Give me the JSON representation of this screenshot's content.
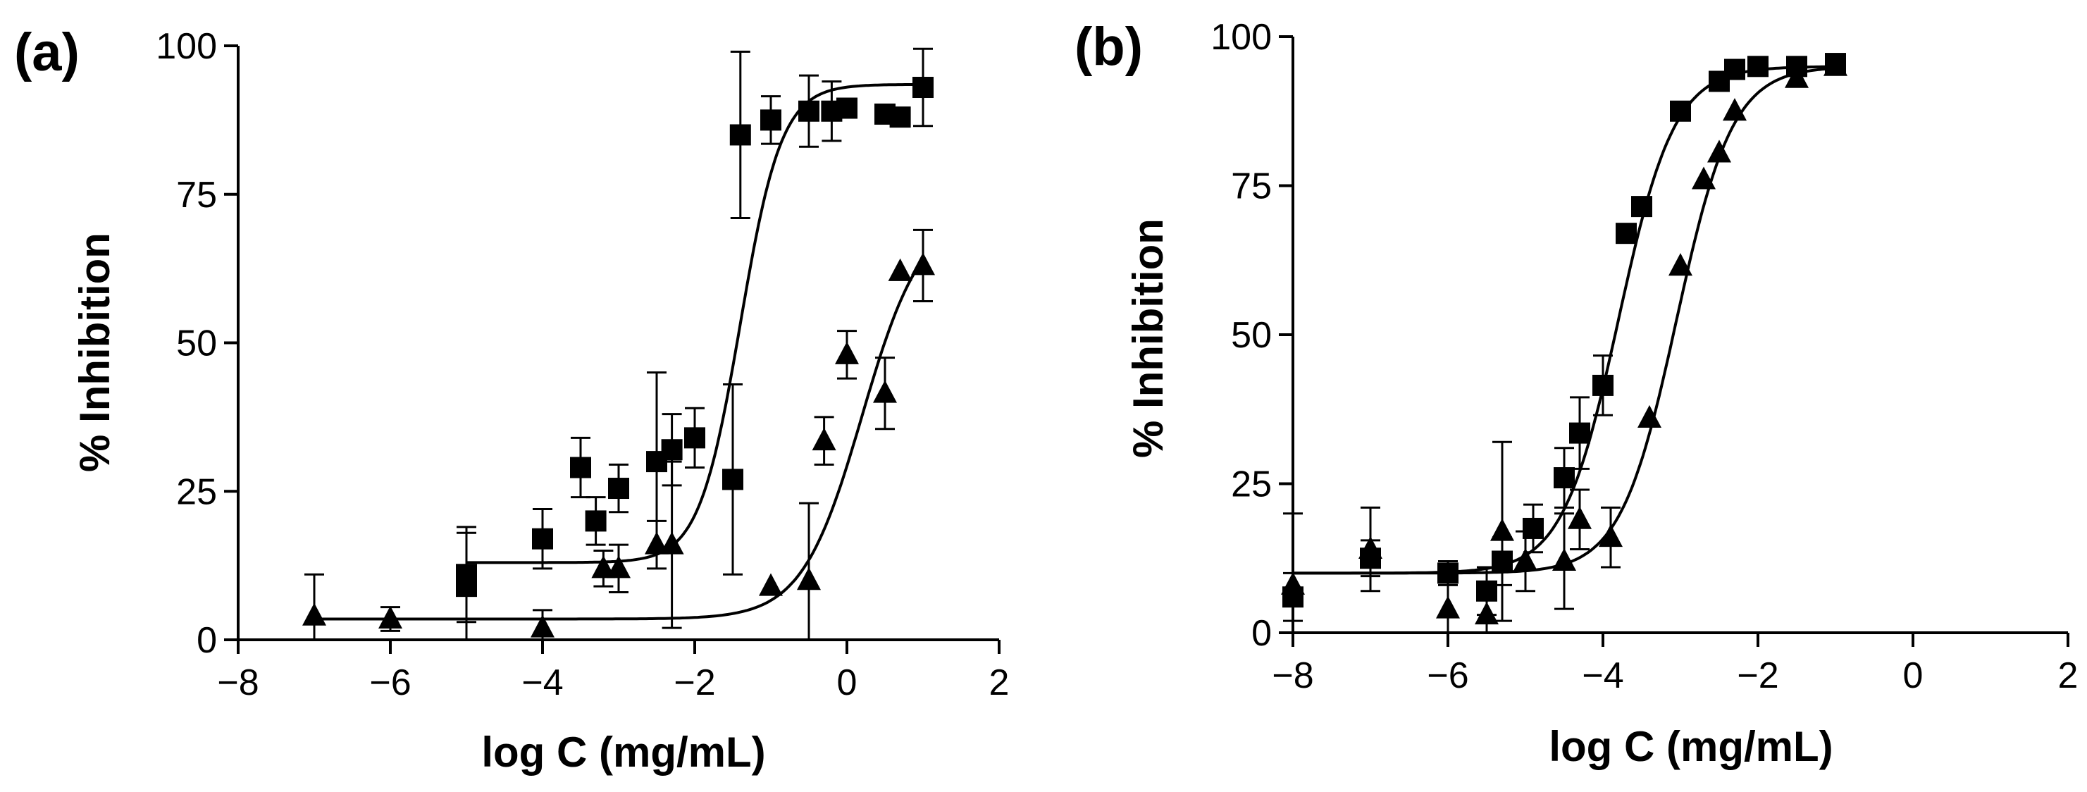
{
  "chart_data": [
    {
      "panel_label": "(a)",
      "type": "scatter",
      "xlabel": "log C (mg/mL)",
      "ylabel": "% Inhibition",
      "xlim": [
        -8,
        2
      ],
      "ylim": [
        0,
        100
      ],
      "xticks": [
        -8,
        -6,
        -4,
        -2,
        0,
        2
      ],
      "yticks": [
        0,
        25,
        50,
        75,
        100
      ],
      "xtick_labels": [
        "−8",
        "−6",
        "−4",
        "−2",
        "0",
        "2"
      ],
      "ytick_labels": [
        "0",
        "25",
        "50",
        "75",
        "100"
      ],
      "grid": false,
      "series": [
        {
          "marker": "square",
          "points": [
            {
              "x": -5.0,
              "y": 11,
              "err": 8
            },
            {
              "x": -5.0,
              "y": 9,
              "err": 9
            },
            {
              "x": -4.0,
              "y": 17,
              "err": 5
            },
            {
              "x": -3.5,
              "y": 29,
              "err": 5
            },
            {
              "x": -3.3,
              "y": 20,
              "err": 4
            },
            {
              "x": -3.0,
              "y": 25.5,
              "err": 4
            },
            {
              "x": -2.5,
              "y": 30,
              "err": 15
            },
            {
              "x": -2.3,
              "y": 32,
              "err": 6
            },
            {
              "x": -2.0,
              "y": 34,
              "err": 5
            },
            {
              "x": -1.5,
              "y": 27,
              "err": 16
            },
            {
              "x": -1.4,
              "y": 85,
              "err": 14
            },
            {
              "x": -1.0,
              "y": 87.5,
              "err": 4
            },
            {
              "x": -0.5,
              "y": 89,
              "err": 6
            },
            {
              "x": -0.2,
              "y": 89,
              "err": 5
            },
            {
              "x": 0.0,
              "y": 89.5,
              "err": 0
            },
            {
              "x": 0.5,
              "y": 88.5,
              "err": 0
            },
            {
              "x": 0.7,
              "y": 88,
              "err": 0
            },
            {
              "x": 1.0,
              "y": 93,
              "err": 6.5
            }
          ],
          "fit": {
            "bottom": 13,
            "top": 93.5,
            "log_ec50": -1.4,
            "hill": 1.6
          }
        },
        {
          "marker": "triangle",
          "points": [
            {
              "x": -7.0,
              "y": 4,
              "err": 7
            },
            {
              "x": -6.0,
              "y": 3.5,
              "err": 2
            },
            {
              "x": -4.0,
              "y": 2,
              "err": 3
            },
            {
              "x": -3.2,
              "y": 12,
              "err": 3
            },
            {
              "x": -3.0,
              "y": 12,
              "err": 4
            },
            {
              "x": -2.5,
              "y": 16,
              "err": 4
            },
            {
              "x": -2.3,
              "y": 16,
              "err": 14
            },
            {
              "x": -1.0,
              "y": 9,
              "err": 0
            },
            {
              "x": -0.5,
              "y": 10,
              "err": 13
            },
            {
              "x": -0.3,
              "y": 33.5,
              "err": 4
            },
            {
              "x": 0.0,
              "y": 48,
              "err": 4
            },
            {
              "x": 0.5,
              "y": 41.5,
              "err": 6
            },
            {
              "x": 0.7,
              "y": 62,
              "err": 0
            },
            {
              "x": 1.0,
              "y": 63,
              "err": 6
            }
          ],
          "fit": {
            "bottom": 3.5,
            "top": 72,
            "log_ec50": 0.2,
            "hill": 1.1
          }
        }
      ]
    },
    {
      "panel_label": "(b)",
      "type": "scatter",
      "xlabel": "log C (mg/mL)",
      "ylabel": "% Inhibition",
      "xlim": [
        -8,
        2
      ],
      "ylim": [
        0,
        100
      ],
      "xticks": [
        -8,
        -6,
        -4,
        -2,
        0,
        2
      ],
      "yticks": [
        0,
        25,
        50,
        75,
        100
      ],
      "xtick_labels": [
        "−8",
        "−6",
        "−4",
        "−2",
        "0",
        "2"
      ],
      "ytick_labels": [
        "0",
        "25",
        "50",
        "75",
        "100"
      ],
      "grid": false,
      "series": [
        {
          "marker": "square",
          "points": [
            {
              "x": -8.0,
              "y": 6,
              "err": 4
            },
            {
              "x": -7.0,
              "y": 12.5,
              "err": 3
            },
            {
              "x": -6.0,
              "y": 10,
              "err": 2
            },
            {
              "x": -5.5,
              "y": 7,
              "err": 4
            },
            {
              "x": -5.3,
              "y": 12,
              "err": 4
            },
            {
              "x": -4.9,
              "y": 17.5,
              "err": 4
            },
            {
              "x": -4.5,
              "y": 26,
              "err": 5
            },
            {
              "x": -4.3,
              "y": 33.5,
              "err": 6
            },
            {
              "x": -4.0,
              "y": 41.5,
              "err": 5
            },
            {
              "x": -3.7,
              "y": 67,
              "err": 0
            },
            {
              "x": -3.5,
              "y": 71.5,
              "err": 0
            },
            {
              "x": -3.0,
              "y": 87.5,
              "err": 0
            },
            {
              "x": -2.5,
              "y": 92.5,
              "err": 0
            },
            {
              "x": -2.3,
              "y": 94.5,
              "err": 0
            },
            {
              "x": -2.0,
              "y": 95,
              "err": 0
            },
            {
              "x": -1.5,
              "y": 95,
              "err": 0
            },
            {
              "x": -1.0,
              "y": 95.5,
              "err": 0
            }
          ],
          "fit": {
            "bottom": 10,
            "top": 95,
            "log_ec50": -3.8,
            "hill": 1.2
          }
        },
        {
          "marker": "triangle",
          "points": [
            {
              "x": -8.0,
              "y": 8,
              "err": 12
            },
            {
              "x": -7.0,
              "y": 14,
              "err": 7
            },
            {
              "x": -6.0,
              "y": 4,
              "err": 5
            },
            {
              "x": -5.5,
              "y": 3,
              "err": 4
            },
            {
              "x": -5.3,
              "y": 17,
              "err": 15
            },
            {
              "x": -5.0,
              "y": 12,
              "err": 5
            },
            {
              "x": -4.5,
              "y": 12,
              "err": 8
            },
            {
              "x": -4.3,
              "y": 19,
              "err": 5
            },
            {
              "x": -3.9,
              "y": 16,
              "err": 5
            },
            {
              "x": -3.4,
              "y": 36,
              "err": 0
            },
            {
              "x": -3.0,
              "y": 61.5,
              "err": 0
            },
            {
              "x": -2.7,
              "y": 76,
              "err": 0
            },
            {
              "x": -2.5,
              "y": 80.5,
              "err": 0
            },
            {
              "x": -2.3,
              "y": 87.5,
              "err": 0
            },
            {
              "x": -1.5,
              "y": 93,
              "err": 0
            },
            {
              "x": -1.0,
              "y": 95,
              "err": 0
            }
          ],
          "fit": {
            "bottom": 10,
            "top": 95,
            "log_ec50": -3.05,
            "hill": 1.2
          }
        }
      ]
    }
  ]
}
